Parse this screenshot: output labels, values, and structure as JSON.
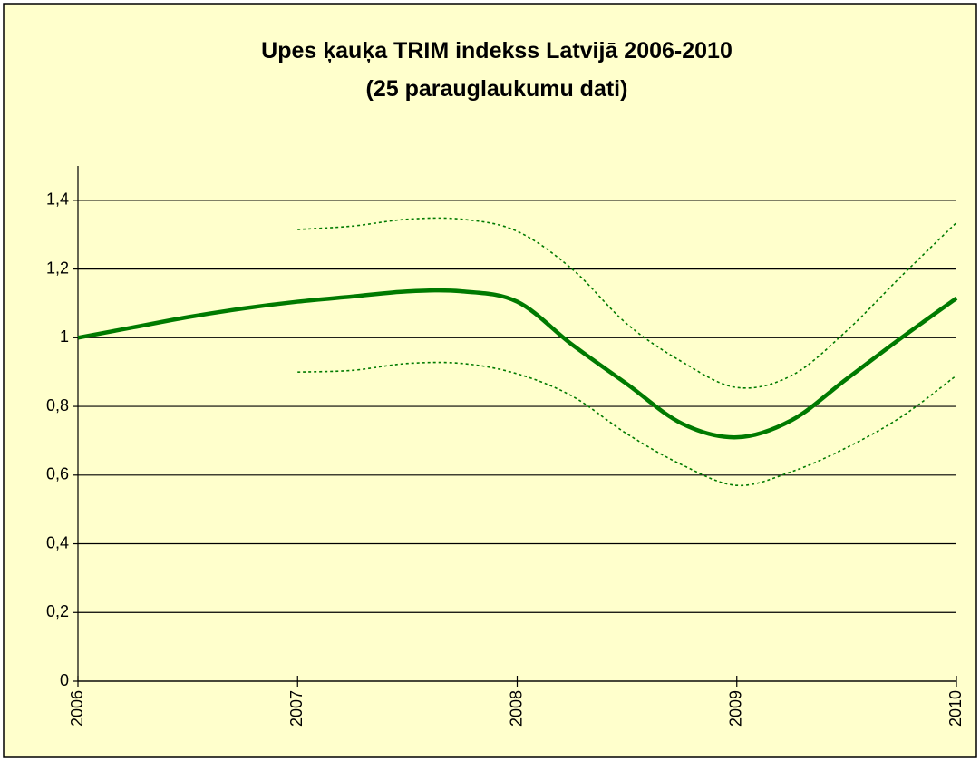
{
  "chart_data": {
    "type": "line",
    "title": [
      "Upes ķauķa TRIM indekss Latvijā 2006-2010",
      "(25 parauglaukumu dati)"
    ],
    "x": [
      2006,
      2006.25,
      2006.5,
      2006.75,
      2007,
      2007.25,
      2007.5,
      2007.75,
      2008,
      2008.25,
      2008.5,
      2008.75,
      2009,
      2009.25,
      2009.5,
      2009.75,
      2010
    ],
    "series": [
      {
        "color": "#007a00",
        "style": "solid",
        "values": [
          1.0,
          1.03,
          1.06,
          1.085,
          1.105,
          1.12,
          1.135,
          1.135,
          1.105,
          0.98,
          0.865,
          0.75,
          0.71,
          0.76,
          0.88,
          1.0,
          1.115
        ]
      },
      {
        "color": "#007a00",
        "style": "dotted",
        "values": [
          null,
          null,
          null,
          null,
          1.315,
          1.325,
          1.345,
          1.345,
          1.31,
          1.2,
          1.04,
          0.93,
          0.855,
          0.89,
          1.02,
          1.18,
          1.335
        ]
      },
      {
        "color": "#007a00",
        "style": "dotted",
        "values": [
          null,
          null,
          null,
          null,
          0.9,
          0.905,
          0.925,
          0.925,
          0.895,
          0.83,
          0.72,
          0.63,
          0.57,
          0.61,
          0.68,
          0.77,
          0.89
        ]
      }
    ],
    "xlim": [
      2006,
      2010
    ],
    "xticks": [
      2006,
      2007,
      2008,
      2009,
      2010
    ],
    "ylim": [
      0,
      1.5
    ],
    "yticks": [
      0,
      {
        "value": 0.2,
        "label": "0,2"
      },
      {
        "value": 0.4,
        "label": "0,4"
      },
      {
        "value": 0.6,
        "label": "0,6"
      },
      {
        "value": 0.8,
        "label": "0,8"
      },
      1,
      {
        "value": 1.2,
        "label": "1,2"
      },
      {
        "value": 1.4,
        "label": "1,4"
      }
    ],
    "grid": true,
    "background": "#ffffcc"
  }
}
